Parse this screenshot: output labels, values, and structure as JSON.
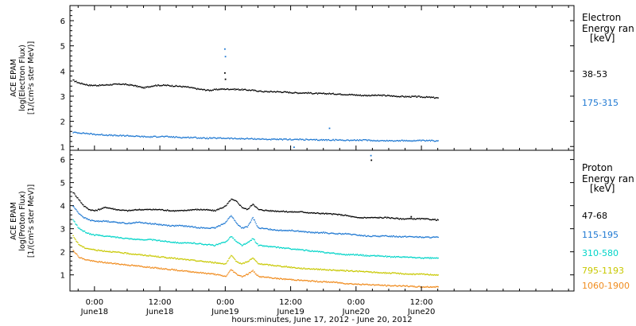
{
  "figure": {
    "xlabel": "hours:minutes, June 17, 2012 - June 20, 2012",
    "x_range_hours": [
      -4.5,
      88
    ],
    "x_ticks": [
      {
        "hour": 0,
        "time": "0:00",
        "date": "June18"
      },
      {
        "hour": 12,
        "time": "12:00",
        "date": "June18"
      },
      {
        "hour": 24,
        "time": "0:00",
        "date": "June19"
      },
      {
        "hour": 36,
        "time": "12:00",
        "date": "June19"
      },
      {
        "hour": 48,
        "time": "0:00",
        "date": "June20"
      },
      {
        "hour": 60,
        "time": "12:00",
        "date": "June20"
      }
    ]
  },
  "chart_data": [
    {
      "type": "scatter",
      "panel": "electron",
      "ylabel_lines": [
        "ACE EPAM",
        "log(Electron Flux)",
        "[1/(cm²s ster MeV)]"
      ],
      "ylim": [
        0.85,
        6.6
      ],
      "yticks": [
        1,
        2,
        3,
        4,
        5,
        6
      ],
      "legend_title": [
        "Electron",
        "Energy ran"
      ],
      "legend_unit": "[keV]",
      "series": [
        {
          "name": "38-53",
          "color": "#000000",
          "x": [
            -4,
            -3,
            -1,
            1,
            3,
            5,
            7,
            9,
            11,
            13,
            15,
            17,
            19,
            21,
            23,
            25,
            27,
            29,
            31,
            33,
            35,
            37,
            39,
            41,
            43,
            45,
            47,
            49,
            51,
            53,
            55,
            57,
            59,
            61,
            63
          ],
          "y": [
            3.65,
            3.55,
            3.45,
            3.45,
            3.48,
            3.5,
            3.45,
            3.35,
            3.45,
            3.45,
            3.42,
            3.38,
            3.3,
            3.25,
            3.3,
            3.3,
            3.28,
            3.25,
            3.2,
            3.2,
            3.18,
            3.15,
            3.15,
            3.12,
            3.12,
            3.1,
            3.08,
            3.05,
            3.05,
            3.05,
            3.02,
            3.0,
            3.0,
            2.98,
            2.95
          ]
        },
        {
          "name": "175-315",
          "color": "#1e78d2",
          "x": [
            -4,
            -2,
            0,
            2,
            4,
            6,
            8,
            10,
            12,
            14,
            16,
            18,
            20,
            22,
            24,
            26,
            28,
            30,
            32,
            34,
            36,
            38,
            40,
            42,
            44,
            46,
            48,
            50,
            52,
            54,
            56,
            58,
            60,
            62,
            63
          ],
          "y": [
            1.58,
            1.55,
            1.5,
            1.48,
            1.45,
            1.45,
            1.42,
            1.4,
            1.42,
            1.4,
            1.38,
            1.38,
            1.35,
            1.35,
            1.35,
            1.33,
            1.33,
            1.32,
            1.3,
            1.3,
            1.3,
            1.3,
            1.28,
            1.28,
            1.28,
            1.27,
            1.27,
            1.27,
            1.25,
            1.25,
            1.25,
            1.25,
            1.25,
            1.25,
            1.25
          ]
        }
      ],
      "outliers": [
        {
          "x": 23.8,
          "y": 4.9,
          "color": "#1e78d2"
        },
        {
          "x": 23.9,
          "y": 4.6,
          "color": "#1e78d2"
        },
        {
          "x": 23.8,
          "y": 3.95,
          "color": "#000000"
        },
        {
          "x": 23.9,
          "y": 3.7,
          "color": "#000000"
        },
        {
          "x": 43,
          "y": 1.75,
          "color": "#1e78d2"
        },
        {
          "x": 36.5,
          "y": 1.0,
          "color": "#1e78d2"
        }
      ]
    },
    {
      "type": "scatter",
      "panel": "proton",
      "ylabel_lines": [
        "ACE EPAM",
        "log(Proton Flux)",
        "[1/(cm²s ster MeV)]"
      ],
      "ylim": [
        0.3,
        6.4
      ],
      "yticks": [
        1,
        2,
        3,
        4,
        5,
        6
      ],
      "legend_title": [
        "Proton",
        "Energy ran"
      ],
      "legend_unit": "[keV]",
      "series": [
        {
          "name": "47-68",
          "color": "#000000",
          "x": [
            -4,
            -3,
            -2,
            -1,
            0,
            2,
            4,
            6,
            8,
            10,
            12,
            14,
            16,
            18,
            20,
            22,
            24,
            25,
            26,
            27,
            28,
            29,
            30,
            32,
            34,
            36,
            38,
            40,
            42,
            44,
            46,
            48,
            50,
            52,
            54,
            56,
            58,
            60,
            62,
            63
          ],
          "y": [
            4.6,
            4.3,
            4.0,
            3.85,
            3.8,
            3.95,
            3.85,
            3.8,
            3.85,
            3.85,
            3.85,
            3.8,
            3.8,
            3.85,
            3.85,
            3.8,
            4.0,
            4.3,
            4.2,
            3.95,
            3.85,
            4.1,
            3.85,
            3.8,
            3.78,
            3.75,
            3.75,
            3.7,
            3.68,
            3.65,
            3.6,
            3.5,
            3.5,
            3.5,
            3.5,
            3.45,
            3.45,
            3.45,
            3.42,
            3.4
          ]
        },
        {
          "name": "115-195",
          "color": "#1e78d2",
          "x": [
            -4,
            -3,
            -2,
            -1,
            0,
            2,
            4,
            6,
            8,
            10,
            12,
            14,
            16,
            18,
            20,
            22,
            24,
            25,
            26,
            27,
            28,
            29,
            30,
            32,
            34,
            36,
            38,
            40,
            42,
            44,
            46,
            48,
            50,
            52,
            54,
            56,
            58,
            60,
            62,
            63
          ],
          "y": [
            4.0,
            3.7,
            3.5,
            3.4,
            3.35,
            3.35,
            3.3,
            3.25,
            3.3,
            3.25,
            3.2,
            3.15,
            3.15,
            3.1,
            3.05,
            3.05,
            3.3,
            3.6,
            3.25,
            3.05,
            3.1,
            3.5,
            3.05,
            3.0,
            2.95,
            2.95,
            2.9,
            2.85,
            2.85,
            2.8,
            2.8,
            2.75,
            2.7,
            2.7,
            2.7,
            2.68,
            2.68,
            2.65,
            2.65,
            2.65
          ]
        },
        {
          "name": "310-580",
          "color": "#00d4c8",
          "x": [
            -4,
            -3,
            -2,
            -1,
            0,
            2,
            4,
            6,
            8,
            10,
            12,
            14,
            16,
            18,
            20,
            22,
            24,
            25,
            26,
            27,
            28,
            29,
            30,
            32,
            34,
            36,
            38,
            40,
            42,
            44,
            46,
            48,
            50,
            52,
            54,
            56,
            58,
            60,
            62,
            63
          ],
          "y": [
            3.4,
            3.05,
            2.9,
            2.8,
            2.75,
            2.7,
            2.65,
            2.6,
            2.55,
            2.55,
            2.5,
            2.45,
            2.4,
            2.4,
            2.35,
            2.3,
            2.45,
            2.7,
            2.45,
            2.3,
            2.4,
            2.6,
            2.3,
            2.25,
            2.2,
            2.15,
            2.1,
            2.05,
            2.0,
            1.95,
            1.9,
            1.9,
            1.85,
            1.85,
            1.8,
            1.8,
            1.78,
            1.75,
            1.75,
            1.75
          ]
        },
        {
          "name": "795-1193",
          "color": "#c8c800",
          "x": [
            -4,
            -3,
            -2,
            -1,
            0,
            2,
            4,
            6,
            8,
            10,
            12,
            14,
            16,
            18,
            20,
            22,
            24,
            25,
            26,
            27,
            28,
            29,
            30,
            32,
            34,
            36,
            38,
            40,
            42,
            44,
            46,
            48,
            50,
            52,
            54,
            56,
            58,
            60,
            62,
            63
          ],
          "y": [
            2.7,
            2.35,
            2.2,
            2.15,
            2.1,
            2.05,
            2.0,
            1.95,
            1.9,
            1.85,
            1.8,
            1.75,
            1.7,
            1.65,
            1.6,
            1.55,
            1.5,
            1.85,
            1.6,
            1.5,
            1.6,
            1.75,
            1.5,
            1.45,
            1.4,
            1.35,
            1.3,
            1.28,
            1.25,
            1.22,
            1.2,
            1.18,
            1.15,
            1.12,
            1.1,
            1.08,
            1.05,
            1.05,
            1.03,
            1.02
          ]
        },
        {
          "name": "1060-1900",
          "color": "#f08c1e",
          "x": [
            -4,
            -3,
            -2,
            -1,
            0,
            2,
            4,
            6,
            8,
            10,
            12,
            14,
            16,
            18,
            20,
            22,
            24,
            25,
            26,
            27,
            28,
            29,
            30,
            32,
            34,
            36,
            38,
            40,
            42,
            44,
            46,
            48,
            50,
            52,
            54,
            56,
            58,
            60,
            62,
            63
          ],
          "y": [
            2.1,
            1.8,
            1.7,
            1.65,
            1.6,
            1.55,
            1.5,
            1.45,
            1.4,
            1.35,
            1.3,
            1.25,
            1.2,
            1.15,
            1.1,
            1.05,
            0.95,
            1.25,
            1.05,
            0.95,
            1.05,
            1.2,
            0.95,
            0.9,
            0.85,
            0.82,
            0.78,
            0.75,
            0.72,
            0.7,
            0.65,
            0.62,
            0.6,
            0.58,
            0.55,
            0.55,
            0.52,
            0.5,
            0.5,
            0.5
          ]
        }
      ],
      "outliers": [
        {
          "x": 50.6,
          "y": 6.2,
          "color": "#1e78d2"
        },
        {
          "x": 50.7,
          "y": 6.0,
          "color": "#000000"
        },
        {
          "x": 58,
          "y": 3.55,
          "color": "#000000"
        }
      ]
    }
  ]
}
